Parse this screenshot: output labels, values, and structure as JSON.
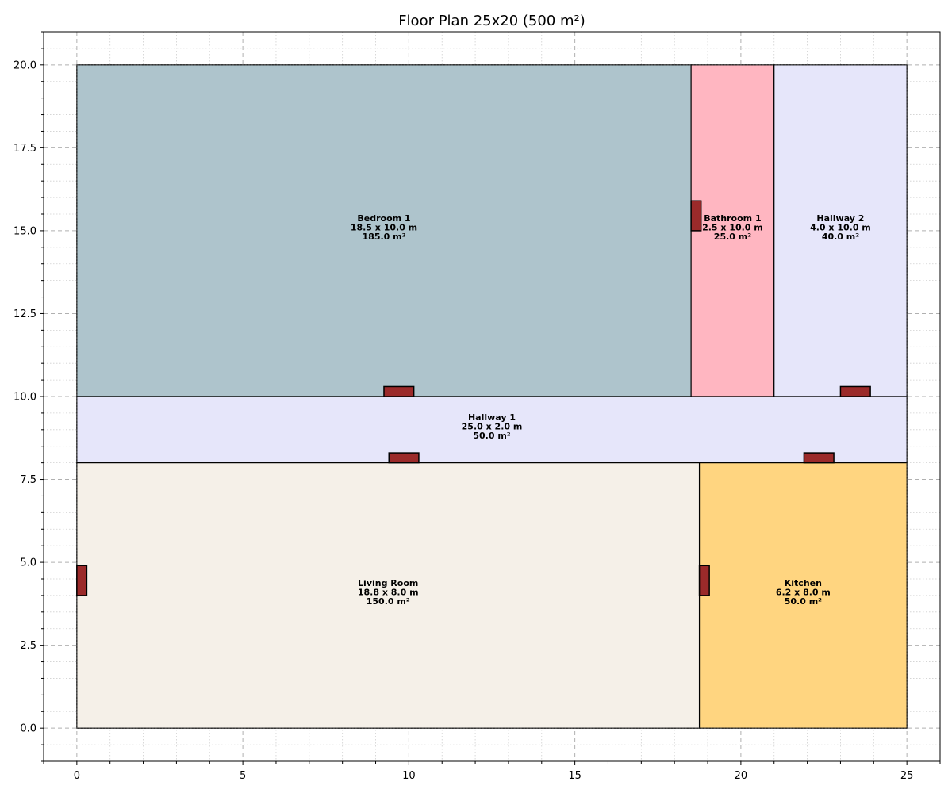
{
  "chart_data": {
    "type": "floor-plan",
    "title": "Floor Plan 25x20 (500 m²)",
    "xlim": [
      -1,
      26
    ],
    "ylim": [
      -1,
      21
    ],
    "x_ticks": [
      0,
      5,
      10,
      15,
      20,
      25
    ],
    "y_ticks": [
      0.0,
      2.5,
      5.0,
      7.5,
      10.0,
      12.5,
      15.0,
      17.5,
      20.0
    ],
    "x_tick_labels": [
      "0",
      "5",
      "10",
      "15",
      "20",
      "25"
    ],
    "y_tick_labels": [
      "0.0",
      "2.5",
      "5.0",
      "7.5",
      "10.0",
      "12.5",
      "15.0",
      "17.5",
      "20.0"
    ],
    "grid": true,
    "outline": {
      "x0": 0,
      "y0": 0,
      "x1": 25,
      "y1": 20
    },
    "rooms": [
      {
        "name": "Bedroom 1",
        "dims": "18.5 x 10.0 m",
        "area": "185.0 m²",
        "x0": 0,
        "y0": 10,
        "x1": 18.5,
        "y1": 20,
        "color": "#aec4cc"
      },
      {
        "name": "Bathroom 1",
        "dims": "2.5 x 10.0 m",
        "area": "25.0 m²",
        "x0": 18.5,
        "y0": 10,
        "x1": 21,
        "y1": 20,
        "color": "#ffb6c1"
      },
      {
        "name": "Hallway 2",
        "dims": "4.0 x 10.0 m",
        "area": "40.0 m²",
        "x0": 21,
        "y0": 10,
        "x1": 25,
        "y1": 20,
        "color": "#e6e6fa"
      },
      {
        "name": "Hallway 1",
        "dims": "25.0 x 2.0 m",
        "area": "50.0 m²",
        "x0": 0,
        "y0": 8,
        "x1": 25,
        "y1": 10,
        "color": "#e6e6fa"
      },
      {
        "name": "Living Room",
        "dims": "18.8 x 8.0 m",
        "area": "150.0 m²",
        "x0": 0,
        "y0": 0,
        "x1": 18.75,
        "y1": 8,
        "color": "#f5f0e8"
      },
      {
        "name": "Kitchen",
        "dims": "6.2 x 8.0 m",
        "area": "50.0 m²",
        "x0": 18.75,
        "y0": 0,
        "x1": 25,
        "y1": 8,
        "color": "#ffd580"
      }
    ],
    "doors": [
      {
        "x0": 9.25,
        "y0": 10.0,
        "x1": 10.15,
        "y1": 10.3
      },
      {
        "x0": 18.5,
        "y0": 15.0,
        "x1": 18.8,
        "y1": 15.9
      },
      {
        "x0": 23.0,
        "y0": 10.0,
        "x1": 23.9,
        "y1": 10.3
      },
      {
        "x0": 9.4,
        "y0": 8.0,
        "x1": 10.3,
        "y1": 8.3
      },
      {
        "x0": 21.9,
        "y0": 8.0,
        "x1": 22.8,
        "y1": 8.3
      },
      {
        "x0": 0.0,
        "y0": 4.0,
        "x1": 0.3,
        "y1": 4.9
      },
      {
        "x0": 18.75,
        "y0": 4.0,
        "x1": 19.05,
        "y1": 4.9
      }
    ]
  }
}
